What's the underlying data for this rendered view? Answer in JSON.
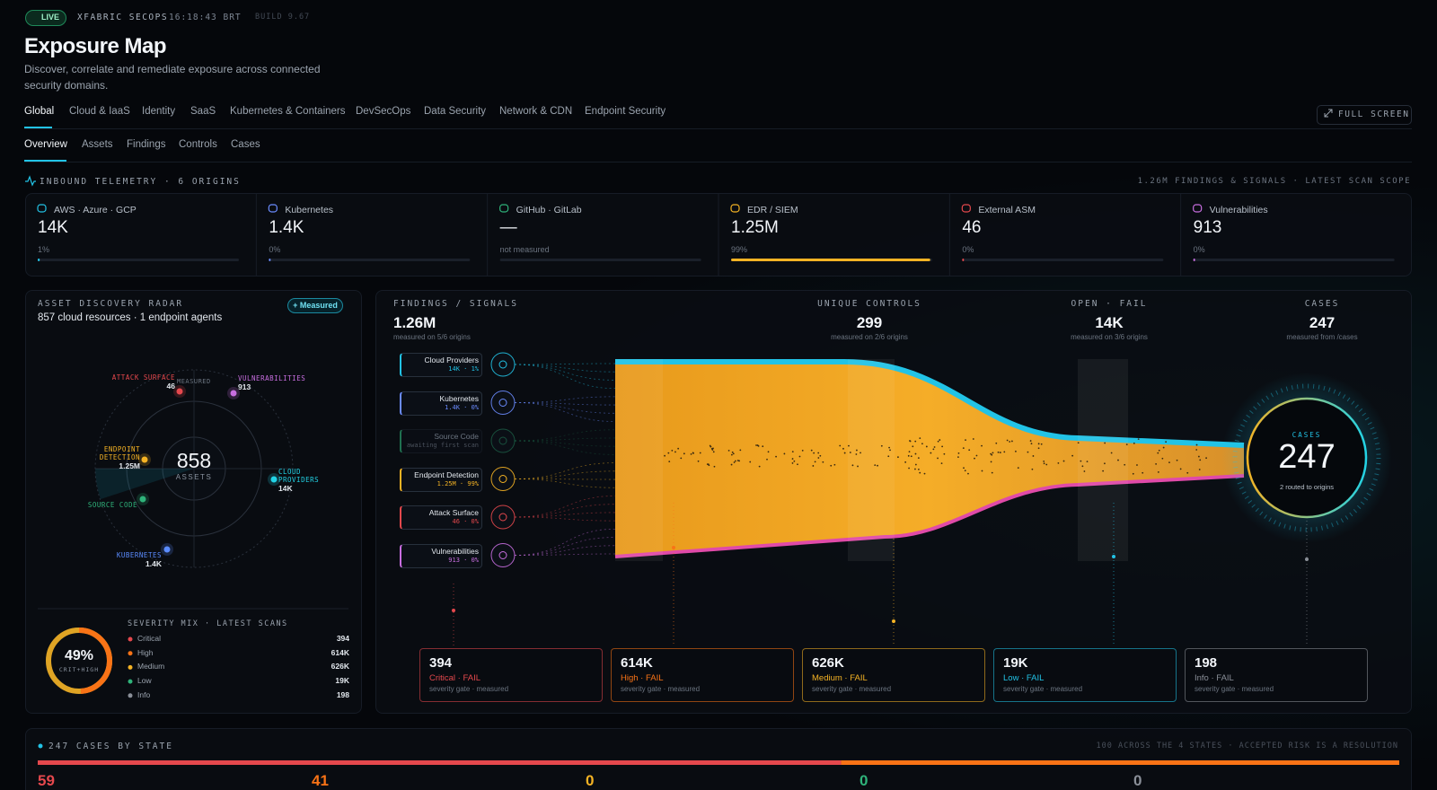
{
  "header": {
    "live": "LIVE",
    "app": "XFABRIC SECOPS",
    "time": "16:18:43 BRT",
    "build": "BUILD 9.67",
    "title": "Exposure Map",
    "subtitle": "Discover, correlate and remediate exposure across connected security domains.",
    "full_screen": "FULL SCREEN"
  },
  "tabs": [
    "Global",
    "Cloud & IaaS",
    "Identity",
    "SaaS",
    "Kubernetes & Containers",
    "DevSecOps",
    "Data Security",
    "Network & CDN",
    "Endpoint Security"
  ],
  "subtabs": [
    "Overview",
    "Assets",
    "Findings",
    "Controls",
    "Cases"
  ],
  "telemetry": {
    "label": "INBOUND TELEMETRY · 6 ORIGINS",
    "scope": "1.26M FINDINGS & SIGNALS · LATEST SCAN SCOPE"
  },
  "origins": [
    {
      "name": "AWS · Azure · GCP",
      "value": "14K",
      "note": "1%",
      "progress": 1,
      "color": "#22c3e6"
    },
    {
      "name": "Kubernetes",
      "value": "1.4K",
      "note": "0%",
      "progress": 0,
      "color": "#6b8cff"
    },
    {
      "name": "GitHub · GitLab",
      "value": "—",
      "note": "not measured",
      "progress": null,
      "color": "#2fb37a"
    },
    {
      "name": "EDR / SIEM",
      "value": "1.25M",
      "note": "99%",
      "progress": 99,
      "color": "#f5b324"
    },
    {
      "name": "External ASM",
      "value": "46",
      "note": "0%",
      "progress": 0,
      "color": "#e5484d"
    },
    {
      "name": "Vulnerabilities",
      "value": "913",
      "note": "0%",
      "progress": 0,
      "color": "#c86ee0"
    }
  ],
  "radar": {
    "title": "ASSET DISCOVERY RADAR",
    "summary": "857 cloud resources · 1 endpoint agents",
    "badge": "+ Measured",
    "total": 858,
    "total_label": "ASSETS",
    "measured_tag": "MEASURED",
    "points": [
      {
        "label": "ATTACK SURFACE",
        "value": "46",
        "color": "#e5484d"
      },
      {
        "label": "VULNERABILITIES",
        "value": "913",
        "color": "#c86ee0"
      },
      {
        "label": "ENDPOINT DETECTION",
        "value": "1.25M",
        "color": "#f5b324"
      },
      {
        "label": "CLOUD PROVIDERS",
        "value": "14K",
        "color": "#22d3e6"
      },
      {
        "label": "SOURCE CODE",
        "color": "#2fb37a"
      },
      {
        "label": "KUBERNETES",
        "value": "1.4K",
        "color": "#5b8cff"
      }
    ]
  },
  "severity": {
    "title": "SEVERITY MIX · LATEST SCANS",
    "percent": 49,
    "percent_label": "49%",
    "caption": "CRIT+HIGH",
    "items": [
      {
        "name": "Critical",
        "value": "394",
        "color": "#e5484d"
      },
      {
        "name": "High",
        "value": "614K",
        "color": "#f97316"
      },
      {
        "name": "Medium",
        "value": "626K",
        "color": "#f5b324"
      },
      {
        "name": "Low",
        "value": "19K",
        "color": "#2fb37a"
      },
      {
        "name": "Info",
        "value": "198",
        "color": "#8a8f98"
      }
    ]
  },
  "flow": {
    "kpis": [
      {
        "label": "FINDINGS / SIGNALS",
        "value": "1.26M",
        "note": "measured on 5/6 origins"
      },
      {
        "label": "UNIQUE CONTROLS",
        "value": "299",
        "note": "measured on 2/6 origins"
      },
      {
        "label": "OPEN · FAIL",
        "value": "14K",
        "note": "measured on 3/6 origins"
      },
      {
        "label": "CASES",
        "value": "247",
        "note": "measured from /cases"
      }
    ],
    "sources": [
      {
        "name": "Cloud Providers",
        "detail": "14K · 1%",
        "color": "#22c3e6"
      },
      {
        "name": "Kubernetes",
        "detail": "1.4K · 0%",
        "color": "#6b8cff"
      },
      {
        "name": "Source Code",
        "detail": "awaiting first scan",
        "color": "#2fb37a"
      },
      {
        "name": "Endpoint Detection",
        "detail": "1.25M · 99%",
        "color": "#f5b324"
      },
      {
        "name": "Attack Surface",
        "detail": "46 · 0%",
        "color": "#e5484d"
      },
      {
        "name": "Vulnerabilities",
        "detail": "913 · 0%",
        "color": "#c86ee0"
      }
    ],
    "cases": {
      "label": "CASES",
      "value": 247,
      "note": "2 routed to origins"
    },
    "gates": [
      {
        "value": "394",
        "label": "Critical · FAIL",
        "note": "severity gate · measured",
        "color": "#e5484d"
      },
      {
        "value": "614K",
        "label": "High · FAIL",
        "note": "severity gate · measured",
        "color": "#f97316"
      },
      {
        "value": "626K",
        "label": "Medium · FAIL",
        "note": "severity gate · measured",
        "color": "#f5b324"
      },
      {
        "value": "19K",
        "label": "Low · FAIL",
        "note": "severity gate · measured",
        "color": "#22c3e6"
      },
      {
        "value": "198",
        "label": "Info · FAIL",
        "note": "severity gate · measured",
        "color": "#8a8f98"
      }
    ]
  },
  "states": {
    "title": "247 CASES BY STATE",
    "note": "100 ACROSS THE 4 STATES · ACCEPTED RISK IS A RESOLUTION",
    "values": [
      59,
      41,
      0,
      0,
      0
    ],
    "colors": [
      "#e5484d",
      "#f97316",
      "#f5b324",
      "#2fb37a",
      "#8a8f98"
    ]
  }
}
